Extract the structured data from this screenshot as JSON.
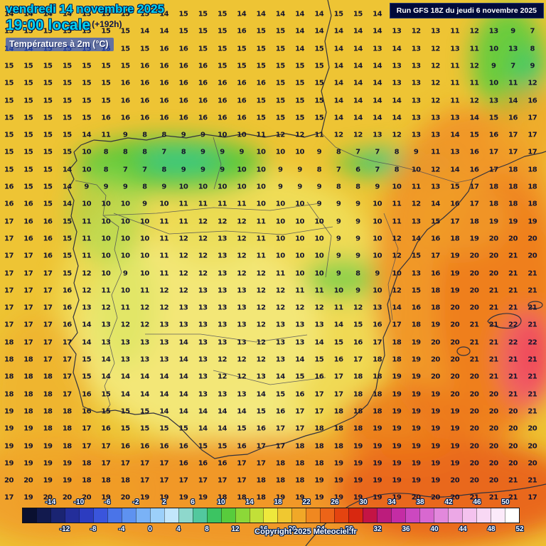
{
  "colors": {
    "title_cyan": "#00d4f4",
    "run_box_bg": "#000a3a",
    "number_color": "#14142e",
    "chip_blue": "#2850d2"
  },
  "header": {
    "date_line": "vendredi 14 novembre 2025",
    "time_line": "19:00 locale",
    "forecast_offset": "(+192h)",
    "variable_label": "Températures à 2m (°C)",
    "run_info": "Run GFS 18Z du jeudi 6 novembre 2025"
  },
  "footer": {
    "copyright": "Copyright 2025 Meteociel.fr"
  },
  "scale": {
    "top_labels": [
      "-14",
      "-10",
      "-6",
      "-2",
      "2",
      "6",
      "10",
      "14",
      "18",
      "22",
      "26",
      "30",
      "34",
      "38",
      "42",
      "46",
      "50"
    ],
    "bottom_labels": [
      "-12",
      "-8",
      "-4",
      "0",
      "4",
      "8",
      "12",
      "16",
      "20",
      "24",
      "28",
      "32",
      "36",
      "40",
      "44",
      "48",
      "52"
    ],
    "colors": [
      "#0a1030",
      "#121a4e",
      "#1a2472",
      "#232e9a",
      "#2c3cc0",
      "#3a55dc",
      "#4a74e8",
      "#5e92f0",
      "#7ab2f6",
      "#9cd0fa",
      "#c2e6fc",
      "#8ed8cc",
      "#52c89e",
      "#3cc462",
      "#58cc3c",
      "#8cd838",
      "#c2e038",
      "#eee83c",
      "#f0c830",
      "#f0a828",
      "#f08820",
      "#ec6418",
      "#e44410",
      "#d82810",
      "#c41444",
      "#bc1c7c",
      "#c42ca4",
      "#cc48c0",
      "#d868d0",
      "#e288dc",
      "#eca8e6",
      "#f4c2ee",
      "#f8d8f4",
      "#fceafa",
      "#ffffff"
    ]
  },
  "grid": {
    "rows": [
      [
        14,
        14,
        14,
        14,
        15,
        15,
        15,
        15,
        14,
        15,
        15,
        15,
        14,
        14,
        14,
        14,
        14,
        15,
        15,
        14,
        14,
        14,
        14,
        13,
        13,
        14,
        12,
        14
      ],
      [
        15,
        15,
        15,
        15,
        15,
        15,
        15,
        14,
        14,
        15,
        15,
        15,
        16,
        15,
        15,
        14,
        14,
        14,
        14,
        14,
        13,
        12,
        13,
        11,
        12,
        13,
        9,
        7
      ],
      [
        14,
        14,
        15,
        15,
        15,
        15,
        15,
        15,
        16,
        16,
        15,
        15,
        15,
        15,
        15,
        14,
        15,
        14,
        14,
        13,
        14,
        13,
        12,
        13,
        11,
        10,
        13,
        8
      ],
      [
        15,
        15,
        15,
        15,
        15,
        15,
        15,
        16,
        16,
        16,
        16,
        15,
        15,
        15,
        15,
        15,
        15,
        14,
        14,
        14,
        13,
        13,
        12,
        11,
        12,
        9,
        7,
        9
      ],
      [
        15,
        15,
        15,
        15,
        15,
        15,
        16,
        16,
        16,
        16,
        16,
        16,
        16,
        16,
        15,
        15,
        15,
        14,
        14,
        14,
        13,
        13,
        12,
        11,
        11,
        10,
        11,
        12
      ],
      [
        15,
        15,
        15,
        15,
        15,
        15,
        16,
        16,
        16,
        16,
        16,
        16,
        16,
        15,
        15,
        15,
        15,
        14,
        14,
        14,
        14,
        13,
        12,
        11,
        12,
        13,
        14,
        16
      ],
      [
        15,
        15,
        15,
        15,
        15,
        16,
        16,
        16,
        16,
        16,
        16,
        16,
        16,
        15,
        15,
        15,
        15,
        14,
        14,
        14,
        14,
        13,
        13,
        13,
        14,
        15,
        16,
        17
      ],
      [
        15,
        15,
        15,
        15,
        14,
        11,
        9,
        8,
        8,
        9,
        9,
        10,
        10,
        11,
        12,
        12,
        11,
        12,
        12,
        13,
        12,
        13,
        13,
        14,
        15,
        16,
        17,
        17
      ],
      [
        15,
        15,
        15,
        15,
        10,
        8,
        8,
        8,
        7,
        8,
        9,
        9,
        9,
        10,
        10,
        10,
        9,
        8,
        7,
        7,
        8,
        9,
        11,
        13,
        16,
        17,
        17,
        17
      ],
      [
        15,
        15,
        15,
        14,
        10,
        8,
        7,
        7,
        8,
        9,
        9,
        9,
        10,
        10,
        9,
        9,
        8,
        7,
        6,
        7,
        8,
        10,
        12,
        14,
        16,
        17,
        18,
        18
      ],
      [
        16,
        15,
        15,
        14,
        9,
        9,
        9,
        8,
        9,
        10,
        10,
        10,
        10,
        10,
        9,
        9,
        9,
        8,
        8,
        9,
        10,
        11,
        13,
        15,
        17,
        18,
        18,
        18
      ],
      [
        16,
        16,
        15,
        14,
        10,
        10,
        10,
        9,
        10,
        11,
        11,
        11,
        11,
        10,
        10,
        10,
        9,
        9,
        9,
        10,
        11,
        12,
        14,
        16,
        17,
        18,
        18,
        18
      ],
      [
        17,
        16,
        16,
        15,
        11,
        10,
        10,
        10,
        11,
        11,
        12,
        12,
        12,
        11,
        10,
        10,
        10,
        9,
        9,
        10,
        11,
        13,
        15,
        17,
        18,
        19,
        19,
        19
      ],
      [
        17,
        16,
        16,
        15,
        11,
        10,
        10,
        10,
        11,
        12,
        12,
        13,
        12,
        11,
        10,
        10,
        10,
        9,
        9,
        10,
        12,
        14,
        16,
        18,
        19,
        20,
        20,
        20
      ],
      [
        17,
        17,
        16,
        15,
        11,
        10,
        10,
        10,
        11,
        12,
        12,
        13,
        12,
        11,
        10,
        10,
        10,
        9,
        9,
        10,
        12,
        15,
        17,
        19,
        20,
        20,
        21,
        20
      ],
      [
        17,
        17,
        17,
        15,
        12,
        10,
        9,
        10,
        11,
        12,
        12,
        13,
        12,
        12,
        11,
        10,
        10,
        9,
        8,
        9,
        10,
        13,
        16,
        19,
        20,
        20,
        21,
        21
      ],
      [
        17,
        17,
        17,
        16,
        12,
        11,
        10,
        11,
        12,
        12,
        13,
        13,
        13,
        12,
        12,
        11,
        11,
        10,
        9,
        10,
        12,
        15,
        18,
        19,
        20,
        21,
        21,
        21
      ],
      [
        17,
        17,
        17,
        16,
        13,
        12,
        11,
        12,
        12,
        13,
        13,
        13,
        13,
        12,
        12,
        12,
        12,
        11,
        12,
        13,
        14,
        16,
        18,
        20,
        20,
        21,
        21,
        21
      ],
      [
        17,
        17,
        17,
        16,
        14,
        13,
        12,
        12,
        13,
        13,
        13,
        13,
        13,
        12,
        13,
        13,
        13,
        14,
        15,
        16,
        17,
        18,
        19,
        20,
        21,
        21,
        22,
        21
      ],
      [
        18,
        17,
        17,
        17,
        14,
        13,
        13,
        13,
        13,
        14,
        13,
        13,
        13,
        12,
        13,
        13,
        14,
        15,
        16,
        17,
        18,
        19,
        20,
        20,
        21,
        21,
        22,
        22
      ],
      [
        18,
        18,
        17,
        17,
        15,
        14,
        13,
        13,
        13,
        14,
        13,
        12,
        12,
        12,
        13,
        14,
        15,
        16,
        17,
        18,
        18,
        19,
        20,
        20,
        21,
        21,
        21,
        21
      ],
      [
        18,
        18,
        18,
        17,
        15,
        14,
        14,
        14,
        14,
        14,
        13,
        12,
        12,
        13,
        14,
        15,
        16,
        17,
        18,
        18,
        19,
        19,
        20,
        20,
        20,
        21,
        21,
        21
      ],
      [
        18,
        18,
        18,
        17,
        16,
        15,
        14,
        14,
        14,
        14,
        13,
        13,
        13,
        14,
        15,
        16,
        17,
        17,
        18,
        18,
        19,
        19,
        19,
        20,
        20,
        20,
        21,
        21
      ],
      [
        19,
        18,
        18,
        18,
        16,
        15,
        15,
        15,
        14,
        14,
        14,
        14,
        14,
        15,
        16,
        17,
        17,
        18,
        18,
        18,
        19,
        19,
        19,
        19,
        20,
        20,
        20,
        21
      ],
      [
        19,
        19,
        18,
        18,
        17,
        16,
        15,
        15,
        15,
        15,
        14,
        14,
        15,
        16,
        17,
        17,
        18,
        18,
        18,
        19,
        19,
        19,
        19,
        19,
        20,
        20,
        20,
        20
      ],
      [
        19,
        19,
        19,
        18,
        17,
        17,
        16,
        16,
        16,
        16,
        15,
        15,
        16,
        17,
        17,
        18,
        18,
        18,
        19,
        19,
        19,
        19,
        19,
        19,
        20,
        20,
        20,
        20
      ],
      [
        19,
        19,
        19,
        19,
        18,
        17,
        17,
        17,
        17,
        16,
        16,
        16,
        17,
        17,
        18,
        18,
        18,
        19,
        19,
        19,
        19,
        19,
        19,
        19,
        20,
        20,
        20,
        20
      ],
      [
        20,
        20,
        19,
        19,
        18,
        18,
        18,
        17,
        17,
        17,
        17,
        17,
        17,
        18,
        18,
        18,
        19,
        19,
        19,
        19,
        19,
        19,
        19,
        20,
        20,
        20,
        21,
        21
      ],
      [
        17,
        19,
        20,
        20,
        20,
        19,
        20,
        19,
        19,
        19,
        19,
        18,
        18,
        18,
        19,
        19,
        19,
        19,
        19,
        19,
        19,
        20,
        20,
        20,
        21,
        21,
        21,
        17
      ]
    ]
  }
}
